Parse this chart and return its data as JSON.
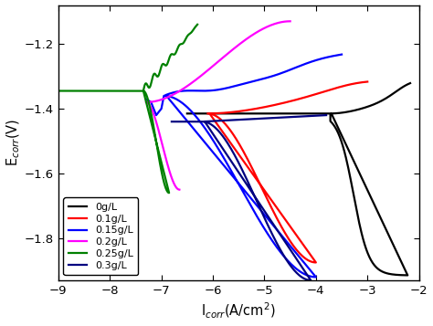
{
  "xlabel": "I$_{corr}$(A/cm$^2$)",
  "ylabel": "E$_{corr}$(V)",
  "xlim": [
    -9,
    -2
  ],
  "ylim": [
    -1.93,
    -1.08
  ],
  "xticks": [
    -9,
    -8,
    -7,
    -6,
    -5,
    -4,
    -3,
    -2
  ],
  "yticks": [
    -1.8,
    -1.6,
    -1.4,
    -1.2
  ],
  "background_color": "#ffffff",
  "legend_entries": [
    "0g/L",
    "0.1g/L",
    "0.15g/L",
    "0.2g/L",
    "0.25g/L",
    "0.3g/L"
  ],
  "line_colors": [
    "black",
    "red",
    "blue",
    "magenta",
    "green",
    "navy"
  ],
  "linewidth": 1.6
}
